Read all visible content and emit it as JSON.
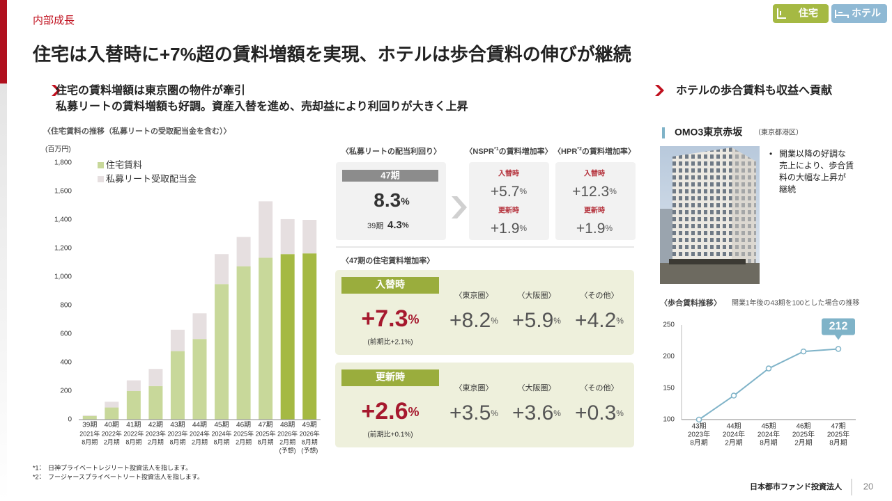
{
  "header": {
    "section": "内部成長",
    "title": "住宅は入替時に+7%超の賃料増額を実現、ホテルは歩合賃料の伸びが継続",
    "tags": [
      "住宅",
      "ホテル"
    ]
  },
  "left_heading": [
    "住宅の賃料増額は東京圏の物件が牽引",
    "私募リートの賃料増額も好調。資産入替を進め、売却益により利回りが大きく上昇"
  ],
  "right_heading": "ホテルの歩合賃料も収益へ貢献",
  "yield_box": {
    "title": "〈私募リートの配当利回り〉",
    "period": "47期",
    "value": "8.3",
    "unit": "%",
    "prev_period": "39期",
    "prev_value": "4.3",
    "prev_unit": "%"
  },
  "nspr": {
    "title_parts": [
      "〈NSPR",
      "*1",
      "の賃料増加率〉"
    ],
    "rows": [
      {
        "label": "入替時",
        "value": "+5.7",
        "unit": "%"
      },
      {
        "label": "更新時",
        "value": "+1.9",
        "unit": "%"
      }
    ]
  },
  "hpr": {
    "title_parts": [
      "〈HPR",
      "*2",
      "の賃料増加率〉"
    ],
    "rows": [
      {
        "label": "入替時",
        "value": "+12.3",
        "unit": "%"
      },
      {
        "label": "更新時",
        "value": "+1.9",
        "unit": "%"
      }
    ]
  },
  "rent_increase": {
    "title": "〈47期の住宅賃料増加率〉",
    "panels": [
      {
        "label": "入替時",
        "value": "+7.3",
        "unit": "%",
        "note": "(前期比+2.1%)",
        "regions": [
          {
            "name": "〈東京圏〉",
            "value": "+8.2",
            "unit": "%"
          },
          {
            "name": "〈大阪圏〉",
            "value": "+5.9",
            "unit": "%"
          },
          {
            "name": "〈その他〉",
            "value": "+4.2",
            "unit": "%"
          }
        ]
      },
      {
        "label": "更新時",
        "value": "+2.6",
        "unit": "%",
        "note": "(前期比+0.1%)",
        "regions": [
          {
            "name": "〈東京圏〉",
            "value": "+3.5",
            "unit": "%"
          },
          {
            "name": "〈大阪圏〉",
            "value": "+3.6",
            "unit": "%"
          },
          {
            "name": "〈その他〉",
            "value": "+0.3",
            "unit": "%"
          }
        ]
      }
    ]
  },
  "hotel": {
    "name": "OMO3東京赤坂",
    "location": "（東京都港区）",
    "bullet": [
      "開業以降の好調な",
      "売上により、歩合賃",
      "料の大幅な上昇が",
      "継続"
    ]
  },
  "chart_data": [
    {
      "type": "bar",
      "stacked": true,
      "title": "〈住宅賃料の推移（私募リートの受取配当金を含む）〉",
      "y_unit": "(百万円)",
      "categories": [
        "39期",
        "40期",
        "41期",
        "42期",
        "43期",
        "44期",
        "45期",
        "46期",
        "47期",
        "48期",
        "49期"
      ],
      "sublabels": [
        [
          "2021年",
          "8月期"
        ],
        [
          "2022年",
          "2月期"
        ],
        [
          "2022年",
          "8月期"
        ],
        [
          "2023年",
          "2月期"
        ],
        [
          "2023年",
          "8月期"
        ],
        [
          "2024年",
          "2月期"
        ],
        [
          "2024年",
          "8月期"
        ],
        [
          "2025年",
          "2月期"
        ],
        [
          "2025年",
          "8月期"
        ],
        [
          "2026年",
          "2月期",
          "(予想)"
        ],
        [
          "2026年",
          "8月期",
          "(予想)"
        ]
      ],
      "series": [
        {
          "name": "住宅賃料",
          "color": "#c8d89a",
          "colors": [
            "#c8d89a",
            "#c8d89a",
            "#c8d89a",
            "#c8d89a",
            "#c8d89a",
            "#c8d89a",
            "#c8d89a",
            "#c8d89a",
            "#c8d89a",
            "#a5b943",
            "#a5b943"
          ],
          "values": [
            25,
            85,
            200,
            235,
            480,
            565,
            950,
            1075,
            1135,
            1160,
            1165
          ]
        },
        {
          "name": "私募リート受取配当金",
          "color": "#e6dfe0",
          "values": [
            5,
            40,
            75,
            120,
            150,
            180,
            210,
            205,
            395,
            245,
            235
          ]
        }
      ],
      "ylim": [
        0,
        1800
      ],
      "yticks": [
        0,
        200,
        400,
        600,
        800,
        {
          "value": 1000,
          "label": "1,000"
        },
        {
          "value": 1200,
          "label": "1,200"
        },
        {
          "value": 1400,
          "label": "1,400"
        },
        {
          "value": 1600,
          "label": "1,600"
        },
        {
          "value": 1800,
          "label": "1,800"
        }
      ],
      "grid": false,
      "legend": "top-left"
    },
    {
      "type": "line",
      "title": "〈歩合賃料推移〉",
      "subtitle": "開業1年後の43期を100とした場合の推移",
      "categories": [
        "43期",
        "44期",
        "45期",
        "46期",
        "47期"
      ],
      "sublabels": [
        [
          "2023年",
          "8月期"
        ],
        [
          "2024年",
          "2月期"
        ],
        [
          "2024年",
          "8月期"
        ],
        [
          "2025年",
          "2月期"
        ],
        [
          "2025年",
          "8月期"
        ]
      ],
      "values": [
        100,
        138,
        181,
        208,
        212
      ],
      "color": "#7fb3c8",
      "ylim": [
        100,
        250
      ],
      "yticks": [
        100,
        150,
        200,
        250
      ],
      "grid": false
    }
  ],
  "footnotes": [
    "*1：　日神プライベートレジリート投資法人を指します。",
    "*2：　フージャースプライベートリート投資法人を指します。"
  ],
  "footer": {
    "company": "日本都市ファンド投資法人",
    "page": "20"
  }
}
